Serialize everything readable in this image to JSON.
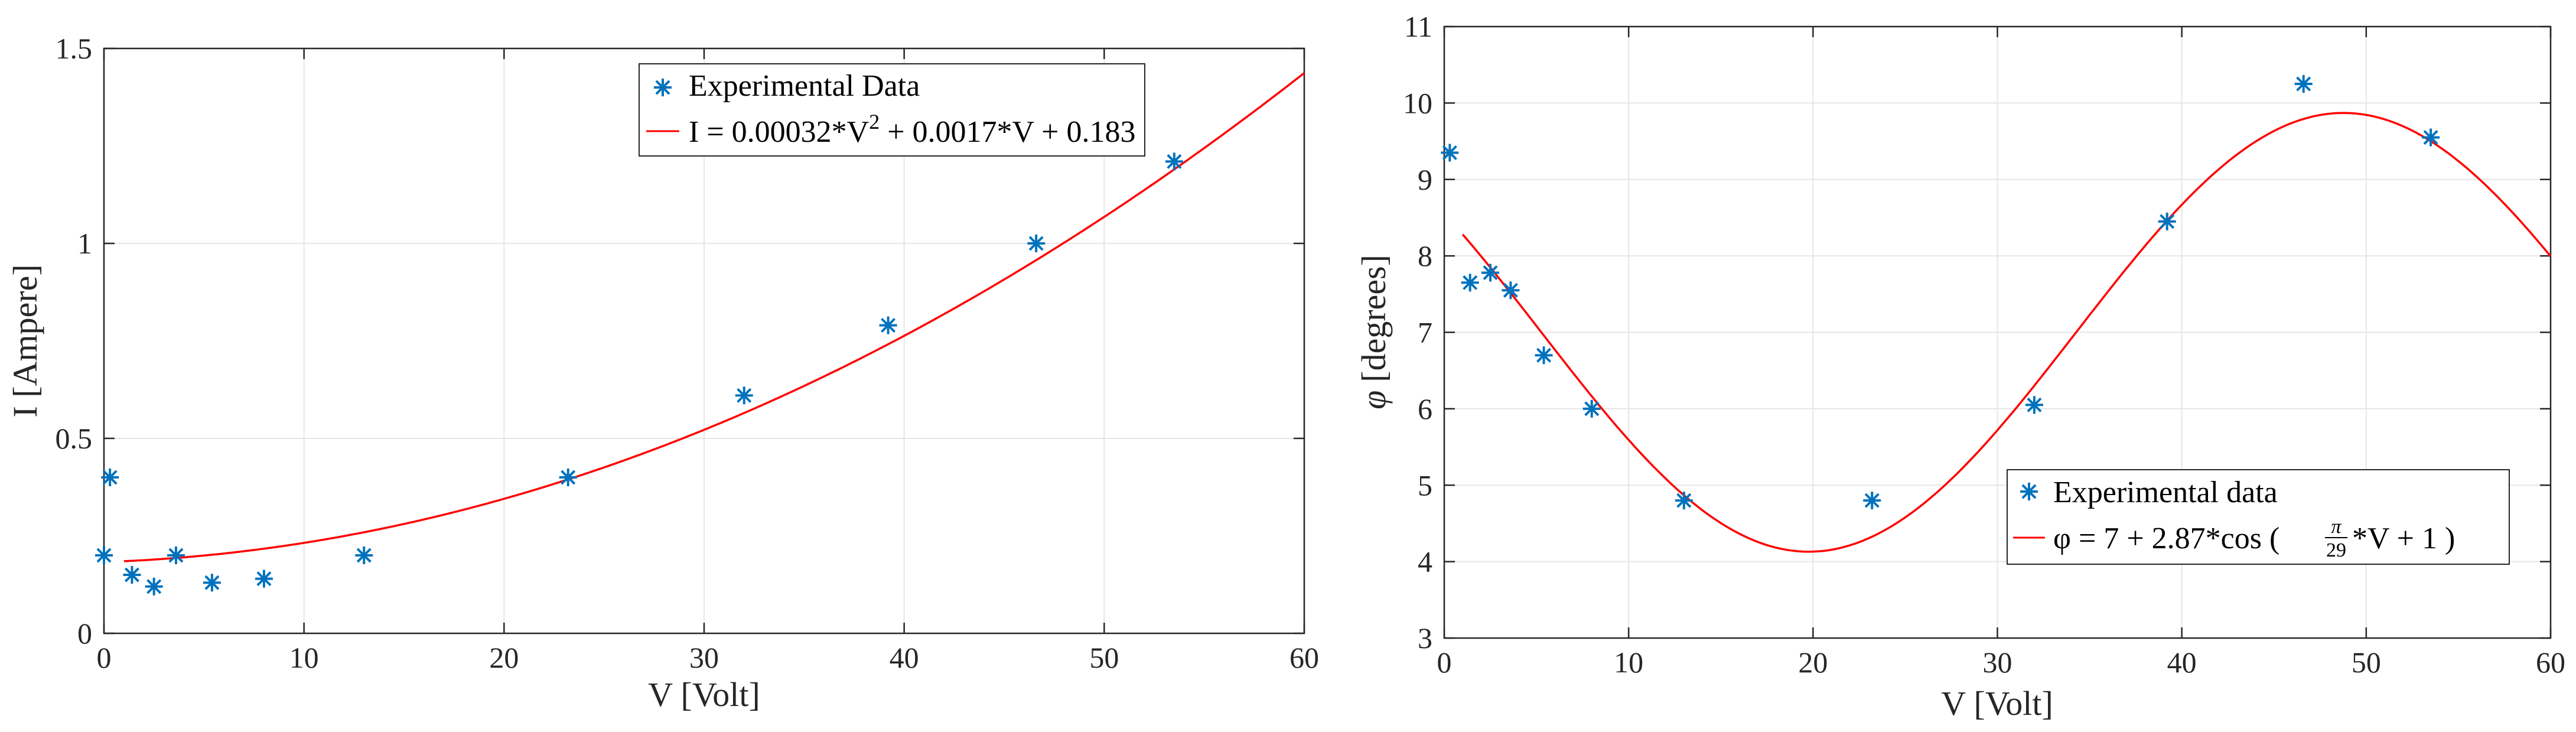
{
  "colors": {
    "data": "#0072BD",
    "fit": "#FF0000"
  },
  "chart_data": [
    {
      "type": "scatter",
      "xlabel": "V [Volt]",
      "ylabel": "I [Ampere]",
      "xlim": [
        0,
        60
      ],
      "ylim": [
        0,
        1.5
      ],
      "xticks": [
        0,
        10,
        20,
        30,
        40,
        50,
        60
      ],
      "yticks": [
        0,
        0.5,
        1,
        1.5
      ],
      "xtick_labels": [
        "0",
        "10",
        "20",
        "30",
        "40",
        "50",
        "60"
      ],
      "ytick_labels": [
        "0",
        "0.5",
        "1",
        "1.5"
      ],
      "grid": true,
      "legend_position": "top-right",
      "series": [
        {
          "name": "Experimental Data",
          "kind": "points",
          "x": [
            0.0,
            0.3,
            1.4,
            2.5,
            3.6,
            5.4,
            8.0,
            13.0,
            23.2,
            32.0,
            39.2,
            46.6,
            53.5
          ],
          "y": [
            0.2,
            0.4,
            0.15,
            0.12,
            0.2,
            0.13,
            0.14,
            0.2,
            0.4,
            0.61,
            0.79,
            1.0,
            1.21
          ]
        },
        {
          "name": "I = 0.00032*V",
          "name_sup": "2",
          "name_tail": " + 0.0017*V + 0.183",
          "kind": "curve",
          "model": "quadratic",
          "coefficients": [
            0.00032,
            0.0017,
            0.183
          ],
          "x_range": [
            1,
            60
          ]
        }
      ]
    },
    {
      "type": "scatter",
      "xlabel": "V [Volt]",
      "ylabel_symbol": "φ",
      "ylabel": "[degrees]",
      "xlim": [
        0,
        60
      ],
      "ylim": [
        3,
        11
      ],
      "xticks": [
        0,
        10,
        20,
        30,
        40,
        50,
        60
      ],
      "yticks": [
        3,
        4,
        5,
        6,
        7,
        8,
        9,
        10,
        11
      ],
      "xtick_labels": [
        "0",
        "10",
        "20",
        "30",
        "40",
        "50",
        "60"
      ],
      "ytick_labels": [
        "3",
        "4",
        "5",
        "6",
        "7",
        "8",
        "9",
        "10",
        "11"
      ],
      "grid": true,
      "legend_position": "bottom-right",
      "series": [
        {
          "name": "Experimental data",
          "kind": "points",
          "x": [
            0.3,
            1.4,
            2.5,
            3.6,
            5.4,
            8.0,
            13.0,
            23.2,
            32.0,
            39.2,
            46.6,
            53.5
          ],
          "y": [
            9.35,
            7.65,
            7.78,
            7.55,
            6.7,
            6.0,
            4.8,
            4.8,
            6.05,
            8.45,
            10.25,
            9.55
          ]
        },
        {
          "name_head": "φ = 7 + 2.87*cos (",
          "frac_num": "π",
          "frac_den": "29",
          "name_tail": "*V + 1 )",
          "kind": "curve",
          "model": "cosine",
          "coefficients": [
            7,
            2.87,
            29,
            1
          ],
          "x_range": [
            1,
            60
          ]
        }
      ]
    }
  ]
}
